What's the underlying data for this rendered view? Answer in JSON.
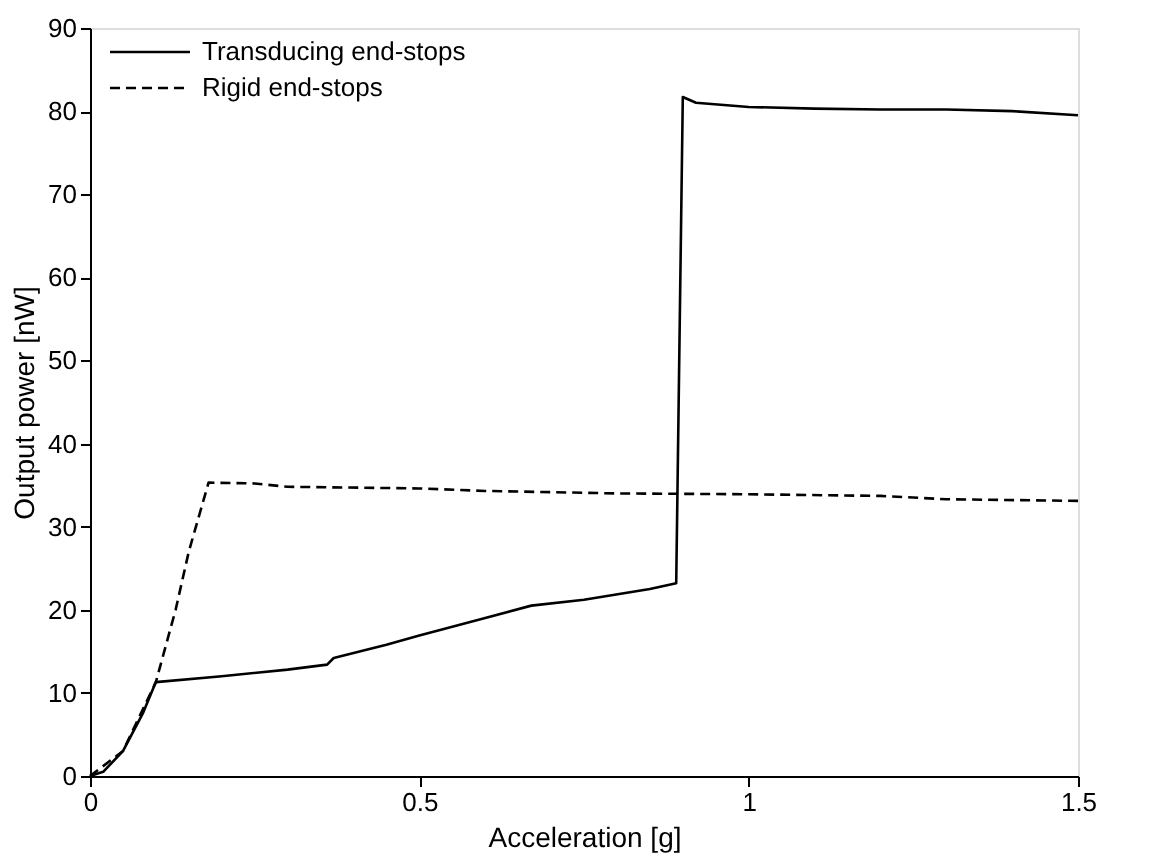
{
  "chart_data": {
    "type": "line",
    "xlabel": "Acceleration [g]",
    "ylabel": "Output power [nW]",
    "xlim": [
      0,
      1.5
    ],
    "xticks": [
      0,
      0.5,
      1,
      1.5
    ],
    "ylim": [
      0,
      90
    ],
    "yticks": [
      0,
      10,
      20,
      30,
      40,
      50,
      60,
      70,
      80,
      90
    ],
    "grid": false,
    "legend": "top left",
    "marker": "none",
    "series": [
      {
        "name": "Transducing end-stops",
        "color": "#000000",
        "line_style": "solid",
        "x": [
          0,
          0.02,
          0.05,
          0.08,
          0.1,
          0.2,
          0.3,
          0.36,
          0.37,
          0.45,
          0.5,
          0.6,
          0.67,
          0.75,
          0.85,
          0.89,
          0.9,
          0.92,
          1.0,
          1.1,
          1.2,
          1.3,
          1.4,
          1.5
        ],
        "values": [
          0,
          0.5,
          3,
          7.5,
          11.3,
          12,
          12.8,
          13.4,
          14.2,
          15.8,
          16.9,
          19,
          20.5,
          21.2,
          22.5,
          23.2,
          81.7,
          81,
          80.5,
          80.3,
          80.2,
          80.2,
          80,
          79.5
        ]
      },
      {
        "name": "Rigid end-stops",
        "color": "#000000",
        "line_style": "dashed",
        "x": [
          0,
          0.05,
          0.1,
          0.13,
          0.15,
          0.18,
          0.25,
          0.3,
          0.5,
          0.6,
          0.8,
          1.0,
          1.2,
          1.3,
          1.5
        ],
        "values": [
          0,
          3,
          11.3,
          20,
          27,
          35.3,
          35.2,
          34.8,
          34.6,
          34.3,
          34,
          33.9,
          33.7,
          33.3,
          33.1
        ]
      }
    ]
  }
}
